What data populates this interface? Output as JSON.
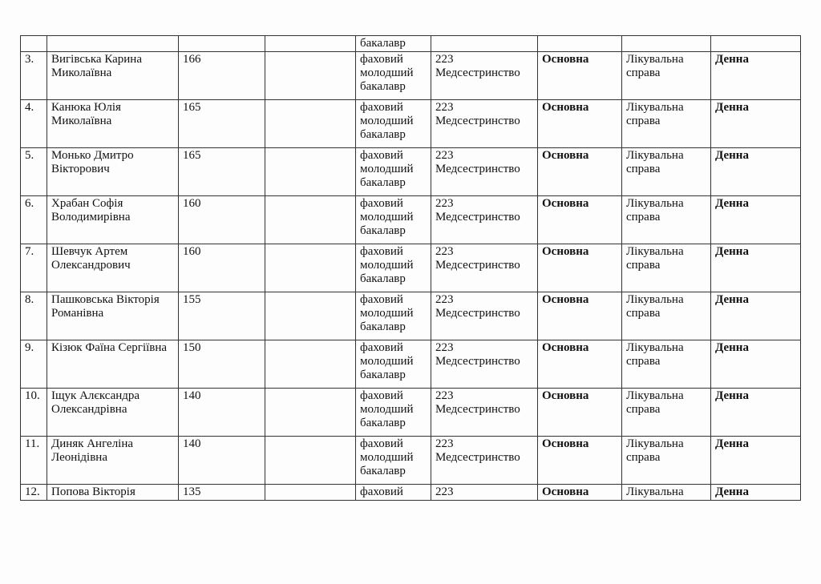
{
  "continued_row": {
    "level": "бакалавр"
  },
  "rows": [
    {
      "num": "3.",
      "name": "Вигівська Карина Миколаївна",
      "score": "166",
      "blank": "",
      "level": "фаховий молодший бакалавр",
      "specialty": "223 Медсестринство",
      "basis": "Основна",
      "program": "Лікувальна справа",
      "form": "Денна"
    },
    {
      "num": "4.",
      "name": "Канюка Юлія Миколаївна",
      "score": "165",
      "blank": "",
      "level": "фаховий молодший бакалавр",
      "specialty": "223 Медсестринство",
      "basis": "Основна",
      "program": "Лікувальна справа",
      "form": "Денна"
    },
    {
      "num": "5.",
      "name": "Монько Дмитро Вікторович",
      "score": "165",
      "blank": "",
      "level": "фаховий молодший бакалавр",
      "specialty": "223 Медсестринство",
      "basis": "Основна",
      "program": "Лікувальна справа",
      "form": "Денна"
    },
    {
      "num": "6.",
      "name": "Храбан Софія Володимирівна",
      "score": "160",
      "blank": "",
      "level": "фаховий молодший бакалавр",
      "specialty": "223 Медсестринство",
      "basis": "Основна",
      "program": "Лікувальна справа",
      "form": "Денна"
    },
    {
      "num": "7.",
      "name": "Шевчук Артем Олександрович",
      "score": "160",
      "blank": "",
      "level": "фаховий молодший бакалавр",
      "specialty": "223 Медсестринство",
      "basis": "Основна",
      "program": "Лікувальна справа",
      "form": "Денна"
    },
    {
      "num": "8.",
      "name": "Пашковська Вікторія Романівна",
      "score": "155",
      "blank": "",
      "level": "фаховий молодший бакалавр",
      "specialty": "223 Медсестринство",
      "basis": "Основна",
      "program": "Лікувальна справа",
      "form": "Денна"
    },
    {
      "num": "9.",
      "name": "Кізюк Фаїна Сергіївна",
      "score": "150",
      "blank": "",
      "level": "фаховий молодший бакалавр",
      "specialty": "223 Медсестринство",
      "basis": "Основна",
      "program": "Лікувальна справа",
      "form": "Денна"
    },
    {
      "num": "10.",
      "name": "Іщук Алєксандра Олександрівна",
      "score": "140",
      "blank": "",
      "level": "фаховий молодший бакалавр",
      "specialty": "223 Медсестринство",
      "basis": "Основна",
      "program": "Лікувальна справа",
      "form": "Денна"
    },
    {
      "num": "11.",
      "name": "Диняк Ангеліна Леонідівна",
      "score": "140",
      "blank": "",
      "level": "фаховий молодший бакалавр",
      "specialty": "223 Медсестринство",
      "basis": "Основна",
      "program": "Лікувальна справа",
      "form": "Денна"
    }
  ],
  "last_row": {
    "num": "12.",
    "name": "Попова Вікторія",
    "score": "135",
    "level": "фаховий",
    "specialty": "223",
    "basis": "Основна",
    "program": "Лікувальна",
    "form": "Денна"
  }
}
